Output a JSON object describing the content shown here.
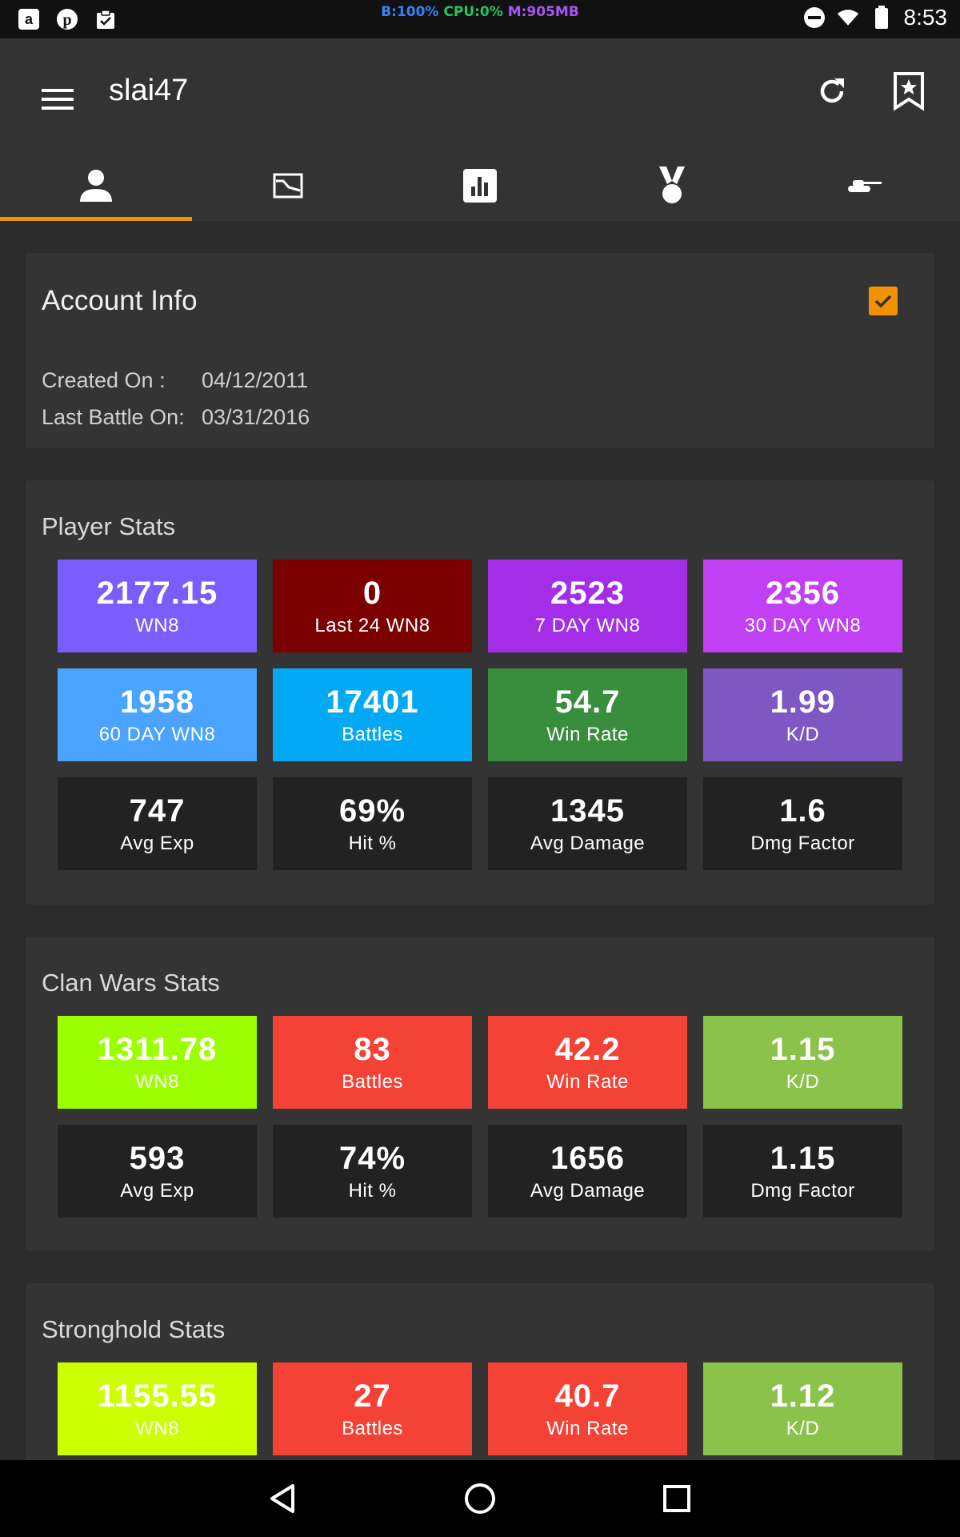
{
  "status_bar": {
    "monitor": {
      "battery": "B:100%",
      "cpu": "CPU:0%",
      "mem": "M:905MB"
    },
    "monitor_colors": {
      "battery": "#3b82f6",
      "cpu": "#22c55e",
      "mem": "#a855f7"
    },
    "time": "8:53",
    "left_icons": [
      "amazon-icon",
      "pinterest-icon",
      "clipboard-check-icon"
    ],
    "right_icons": [
      "do-not-disturb-icon",
      "wifi-icon",
      "battery-icon"
    ]
  },
  "app_bar": {
    "title": "slai47",
    "tabs": [
      {
        "icon": "person-icon",
        "active": true
      },
      {
        "icon": "line-chart-icon",
        "active": false
      },
      {
        "icon": "bar-chart-icon",
        "active": false
      },
      {
        "icon": "medal-icon",
        "active": false
      },
      {
        "icon": "tank-icon",
        "active": false
      }
    ],
    "accent_color": "#f39200"
  },
  "account_info": {
    "title": "Account Info",
    "checked": true,
    "created_label": "Created On :",
    "created_value": "04/12/2011",
    "last_battle_label": "Last Battle On:",
    "last_battle_value": "03/31/2016"
  },
  "player_stats": {
    "title": "Player Stats",
    "tiles": [
      {
        "value": "2177.15",
        "label": "WN8",
        "color": "#7a5cff"
      },
      {
        "value": "0",
        "label": "Last 24 WN8",
        "color": "#7b0000"
      },
      {
        "value": "2523",
        "label": "7 DAY WN8",
        "color": "#a42ee8"
      },
      {
        "value": "2356",
        "label": "30 DAY WN8",
        "color": "#c140f5"
      },
      {
        "value": "1958",
        "label": "60 DAY WN8",
        "color": "#4aa3ff"
      },
      {
        "value": "17401",
        "label": "Battles",
        "color": "#03a9f4"
      },
      {
        "value": "54.7",
        "label": "Win Rate",
        "color": "#388e3c"
      },
      {
        "value": "1.99",
        "label": "K/D",
        "color": "#7e57c2"
      },
      {
        "value": "747",
        "label": "Avg Exp",
        "color": "#222222"
      },
      {
        "value": "69%",
        "label": "Hit %",
        "color": "#222222"
      },
      {
        "value": "1345",
        "label": "Avg Damage",
        "color": "#222222"
      },
      {
        "value": "1.6",
        "label": "Dmg Factor",
        "color": "#222222"
      }
    ]
  },
  "clan_wars_stats": {
    "title": "Clan Wars Stats",
    "tiles": [
      {
        "value": "1311.78",
        "label": "WN8",
        "color": "#9cff00"
      },
      {
        "value": "83",
        "label": "Battles",
        "color": "#f44336"
      },
      {
        "value": "42.2",
        "label": "Win Rate",
        "color": "#f44336"
      },
      {
        "value": "1.15",
        "label": "K/D",
        "color": "#8bc34a"
      },
      {
        "value": "593",
        "label": "Avg Exp",
        "color": "#222222"
      },
      {
        "value": "74%",
        "label": "Hit %",
        "color": "#222222"
      },
      {
        "value": "1656",
        "label": "Avg Damage",
        "color": "#222222"
      },
      {
        "value": "1.15",
        "label": "Dmg Factor",
        "color": "#222222"
      }
    ]
  },
  "stronghold_stats": {
    "title": "Stronghold Stats",
    "tiles": [
      {
        "value": "1155.55",
        "label": "WN8",
        "color": "#ccff00"
      },
      {
        "value": "27",
        "label": "Battles",
        "color": "#f44336"
      },
      {
        "value": "40.7",
        "label": "Win Rate",
        "color": "#f44336"
      },
      {
        "value": "1.12",
        "label": "K/D",
        "color": "#8bc34a"
      }
    ]
  },
  "nav_bar": {
    "icons": [
      "back-icon",
      "home-icon",
      "recents-icon"
    ]
  }
}
